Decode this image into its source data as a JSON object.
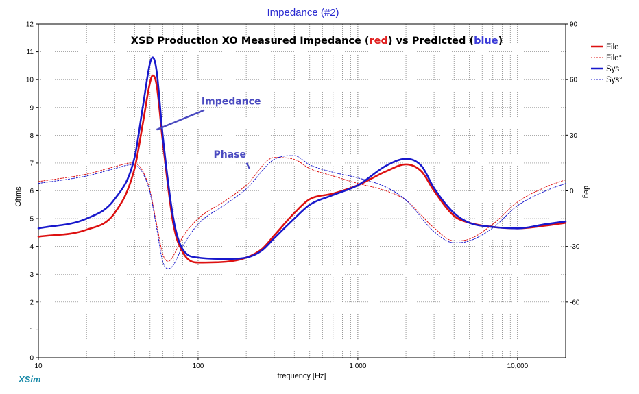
{
  "window": {
    "title": "Impedance (#2)"
  },
  "brand": "XSim",
  "chart_data": {
    "type": "line",
    "title_parts": [
      {
        "text": "XSD Production XO Measured Impedance (",
        "color": "#000000"
      },
      {
        "text": "red",
        "color": "#e02020"
      },
      {
        "text": ")  vs Predicted (",
        "color": "#000000"
      },
      {
        "text": "blue",
        "color": "#3a3ad8"
      },
      {
        "text": ")",
        "color": "#000000"
      }
    ],
    "xlabel": "frequency [Hz]",
    "ylabel": "Ohms",
    "y2label": "deg",
    "x_scale": "log",
    "xlim": [
      10,
      20000
    ],
    "ylim": [
      0,
      12
    ],
    "y2lim": [
      -90,
      90
    ],
    "x_ticks": [
      {
        "value": 10,
        "label": "10"
      },
      {
        "value": 100,
        "label": "100"
      },
      {
        "value": 1000,
        "label": "1,000"
      },
      {
        "value": 10000,
        "label": "10,000"
      }
    ],
    "y_ticks": [
      {
        "value": 0,
        "label": "0"
      },
      {
        "value": 1,
        "label": "1"
      },
      {
        "value": 2,
        "label": "2"
      },
      {
        "value": 3,
        "label": "3"
      },
      {
        "value": 4,
        "label": "4"
      },
      {
        "value": 5,
        "label": "5"
      },
      {
        "value": 6,
        "label": "6"
      },
      {
        "value": 7,
        "label": "7"
      },
      {
        "value": 8,
        "label": "8"
      },
      {
        "value": 9,
        "label": "9"
      },
      {
        "value": 10,
        "label": "10"
      },
      {
        "value": 11,
        "label": "11"
      },
      {
        "value": 12,
        "label": "12"
      }
    ],
    "y2_ticks": [
      {
        "value": 90,
        "label": "90"
      },
      {
        "value": 60,
        "label": "60"
      },
      {
        "value": 30,
        "label": "30"
      },
      {
        "value": 0,
        "label": "0"
      },
      {
        "value": -30,
        "label": "-30"
      },
      {
        "value": -60,
        "label": "-60"
      }
    ],
    "grid": true,
    "legend_position": "right",
    "annotations": [
      {
        "text": "Impedance",
        "x": 105,
        "y": 9.1,
        "arrow_to": [
          55,
          8.2
        ]
      },
      {
        "text": "Phase",
        "x": 125,
        "y": 7.2,
        "arrow_to": [
          210,
          6.8
        ]
      }
    ],
    "series": [
      {
        "name": "File",
        "axis": "left",
        "color": "#dd1111",
        "width": 2.6,
        "x": [
          10,
          20,
          30,
          40,
          45,
          50,
          52,
          55,
          60,
          70,
          80,
          100,
          150,
          200,
          250,
          300,
          400,
          500,
          700,
          1000,
          1500,
          2000,
          2500,
          3000,
          4000,
          5000,
          7000,
          10000,
          15000,
          20000
        ],
        "y": [
          4.35,
          4.6,
          5.2,
          6.8,
          8.4,
          9.9,
          10.15,
          9.8,
          7.8,
          4.8,
          3.8,
          3.42,
          3.45,
          3.6,
          3.9,
          4.4,
          5.2,
          5.7,
          5.9,
          6.2,
          6.7,
          6.95,
          6.7,
          6.0,
          5.1,
          4.85,
          4.7,
          4.65,
          4.75,
          4.85
        ]
      },
      {
        "name": "File°",
        "axis": "right",
        "color": "#dd1111",
        "width": 1,
        "dash": "2,2",
        "x": [
          10,
          20,
          30,
          38,
          42,
          46,
          50,
          55,
          60,
          65,
          70,
          80,
          100,
          150,
          200,
          300,
          400,
          500,
          700,
          1000,
          1500,
          2000,
          3000,
          4000,
          5000,
          7000,
          10000,
          15000,
          20000
        ],
        "y": [
          5,
          9,
          13,
          15,
          14,
          9,
          0,
          -18,
          -34,
          -38,
          -35,
          -25,
          -15,
          -5,
          3,
          18,
          17,
          12,
          8,
          4,
          0,
          -5,
          -20,
          -27,
          -26,
          -18,
          -6,
          2,
          6
        ]
      },
      {
        "name": "Sys",
        "axis": "left",
        "color": "#1818cc",
        "width": 2.6,
        "x": [
          10,
          20,
          30,
          40,
          45,
          50,
          52,
          55,
          60,
          70,
          80,
          100,
          150,
          200,
          250,
          300,
          400,
          500,
          700,
          1000,
          1500,
          2000,
          2500,
          3000,
          4000,
          5000,
          7000,
          10000,
          15000,
          20000
        ],
        "y": [
          4.65,
          5.0,
          5.7,
          7.2,
          9.0,
          10.6,
          10.8,
          10.3,
          8.0,
          5.0,
          3.9,
          3.6,
          3.55,
          3.6,
          3.85,
          4.3,
          5.0,
          5.5,
          5.85,
          6.2,
          6.9,
          7.15,
          6.9,
          6.1,
          5.2,
          4.85,
          4.7,
          4.65,
          4.8,
          4.9
        ]
      },
      {
        "name": "Sys°",
        "axis": "right",
        "color": "#1818cc",
        "width": 1,
        "dash": "2,2",
        "x": [
          10,
          20,
          30,
          38,
          42,
          46,
          50,
          55,
          60,
          65,
          70,
          80,
          100,
          150,
          200,
          300,
          400,
          500,
          700,
          1000,
          1500,
          2000,
          3000,
          4000,
          5000,
          7000,
          10000,
          15000,
          20000
        ],
        "y": [
          4,
          8,
          12,
          14,
          13,
          8,
          -1,
          -20,
          -38,
          -42,
          -40,
          -30,
          -18,
          -7,
          1,
          17,
          19,
          14,
          10,
          7,
          2,
          -5,
          -22,
          -28,
          -27,
          -20,
          -8,
          0,
          4
        ]
      }
    ]
  }
}
